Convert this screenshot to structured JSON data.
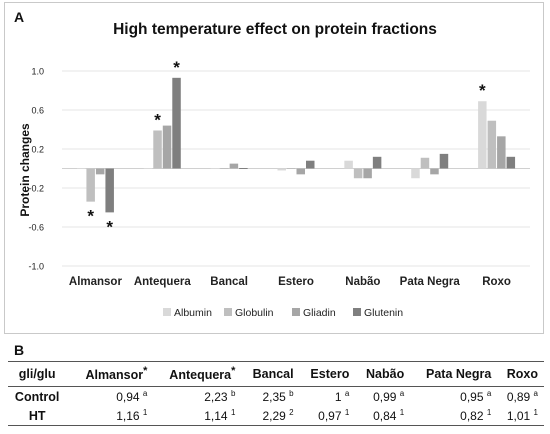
{
  "panel_a_label": "A",
  "panel_b_label": "B",
  "chart_data": {
    "type": "bar",
    "title": "High temperature effect on protein fractions",
    "xlabel": "",
    "ylabel": "Protein changes",
    "ylim": [
      -1.0,
      1.0
    ],
    "yticks": [
      "1.0",
      "0.6",
      "0.2",
      "-0.2",
      "-0.6",
      "-1.0"
    ],
    "grid": true,
    "legend_position": "bottom",
    "categories": [
      "Almansor",
      "Antequera",
      "Bancal",
      "Estero",
      "Nabão",
      "Pata Negra",
      "Roxo"
    ],
    "series": [
      {
        "name": "Albumin",
        "color": "#d9d9d9",
        "values": [
          0.0,
          0.01,
          0.01,
          -0.02,
          0.08,
          -0.1,
          0.69
        ]
      },
      {
        "name": "Globulin",
        "color": "#bfbfbf",
        "values": [
          -0.34,
          0.39,
          0.0,
          0.0,
          -0.1,
          0.11,
          0.49
        ]
      },
      {
        "name": "Gliadin",
        "color": "#a6a6a6",
        "values": [
          -0.06,
          0.44,
          0.05,
          -0.06,
          -0.1,
          -0.06,
          0.33
        ]
      },
      {
        "name": "Glutenin",
        "color": "#7f7f7f",
        "values": [
          -0.45,
          0.93,
          -0.01,
          0.08,
          0.12,
          0.15,
          0.12
        ]
      }
    ],
    "annotations": [
      {
        "text": "*",
        "category": "Almansor",
        "series": "Globulin"
      },
      {
        "text": "*",
        "category": "Almansor",
        "series": "Glutenin"
      },
      {
        "text": "*",
        "category": "Antequera",
        "series": "Globulin"
      },
      {
        "text": "*",
        "category": "Antequera",
        "series": "Glutenin"
      },
      {
        "text": "*",
        "category": "Roxo",
        "series": "Albumin"
      }
    ]
  },
  "table": {
    "corner": "gli/glu",
    "columns": [
      {
        "name": "Almansor",
        "mark": "*"
      },
      {
        "name": "Antequera",
        "mark": "*"
      },
      {
        "name": "Bancal",
        "mark": ""
      },
      {
        "name": "Estero",
        "mark": ""
      },
      {
        "name": "Nabão",
        "mark": ""
      },
      {
        "name": "Pata Negra",
        "mark": ""
      },
      {
        "name": "Roxo",
        "mark": ""
      }
    ],
    "rows": [
      {
        "label": "Control",
        "values": [
          {
            "v": "0,94",
            "s": "a"
          },
          {
            "v": "2,23",
            "s": "b"
          },
          {
            "v": "2,35",
            "s": "b"
          },
          {
            "v": "1",
            "s": "a"
          },
          {
            "v": "0,99",
            "s": "a"
          },
          {
            "v": "0,95",
            "s": "a"
          },
          {
            "v": "0,89",
            "s": "a"
          }
        ]
      },
      {
        "label": "HT",
        "values": [
          {
            "v": "1,16",
            "s": "1"
          },
          {
            "v": "1,14",
            "s": "1"
          },
          {
            "v": "2,29",
            "s": "2"
          },
          {
            "v": "0,97",
            "s": "1"
          },
          {
            "v": "0,84",
            "s": "1"
          },
          {
            "v": "0,82",
            "s": "1"
          },
          {
            "v": "1,01",
            "s": "1"
          }
        ]
      }
    ]
  }
}
